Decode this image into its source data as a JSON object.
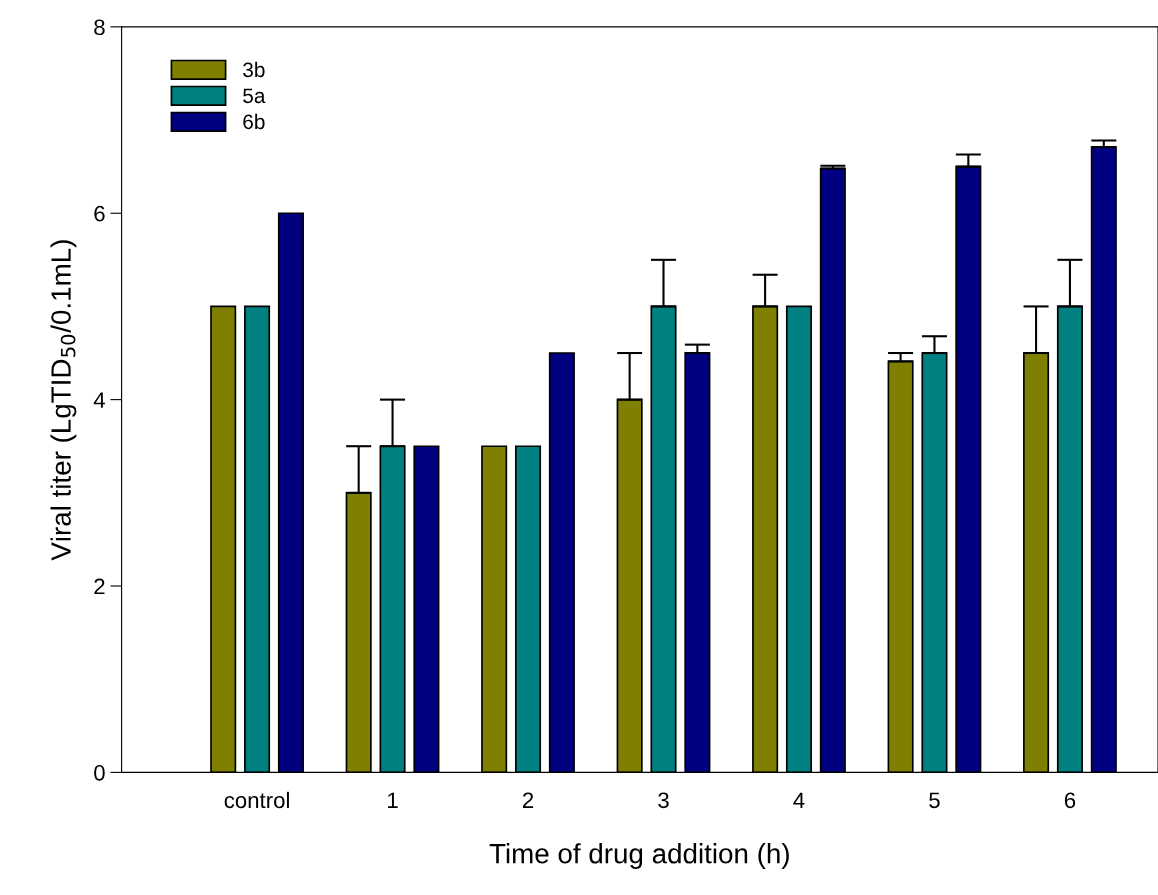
{
  "chart_data": {
    "type": "bar",
    "xlabel": "Time of drug addition (h)",
    "ylabel": "Viral titer (LgTID$_{50}$/0.1mL)",
    "categories": [
      "control",
      "1",
      "2",
      "3",
      "4",
      "5",
      "6"
    ],
    "series": [
      {
        "name": "3b",
        "color": "#808000",
        "values": [
          5,
          3,
          3.5,
          4,
          5,
          4.41,
          4.5
        ],
        "errors": [
          null,
          0.5,
          null,
          0.5,
          0.34,
          0.09,
          0.5
        ]
      },
      {
        "name": "5a",
        "color": "#008080",
        "values": [
          5,
          3.5,
          3.5,
          5,
          5,
          4.5,
          5
        ],
        "errors": [
          null,
          0.5,
          null,
          0.5,
          null,
          0.18,
          0.5
        ]
      },
      {
        "name": "6b",
        "color": "#000080",
        "values": [
          6,
          3.5,
          4.5,
          4.5,
          6.48,
          6.5,
          6.71
        ],
        "errors": [
          null,
          null,
          null,
          0.09,
          0.03,
          0.13,
          0.07
        ]
      }
    ],
    "ylim": [
      0,
      8
    ],
    "yticks": [
      0,
      2,
      4,
      6,
      8
    ],
    "grid": false,
    "legend": "top left"
  }
}
